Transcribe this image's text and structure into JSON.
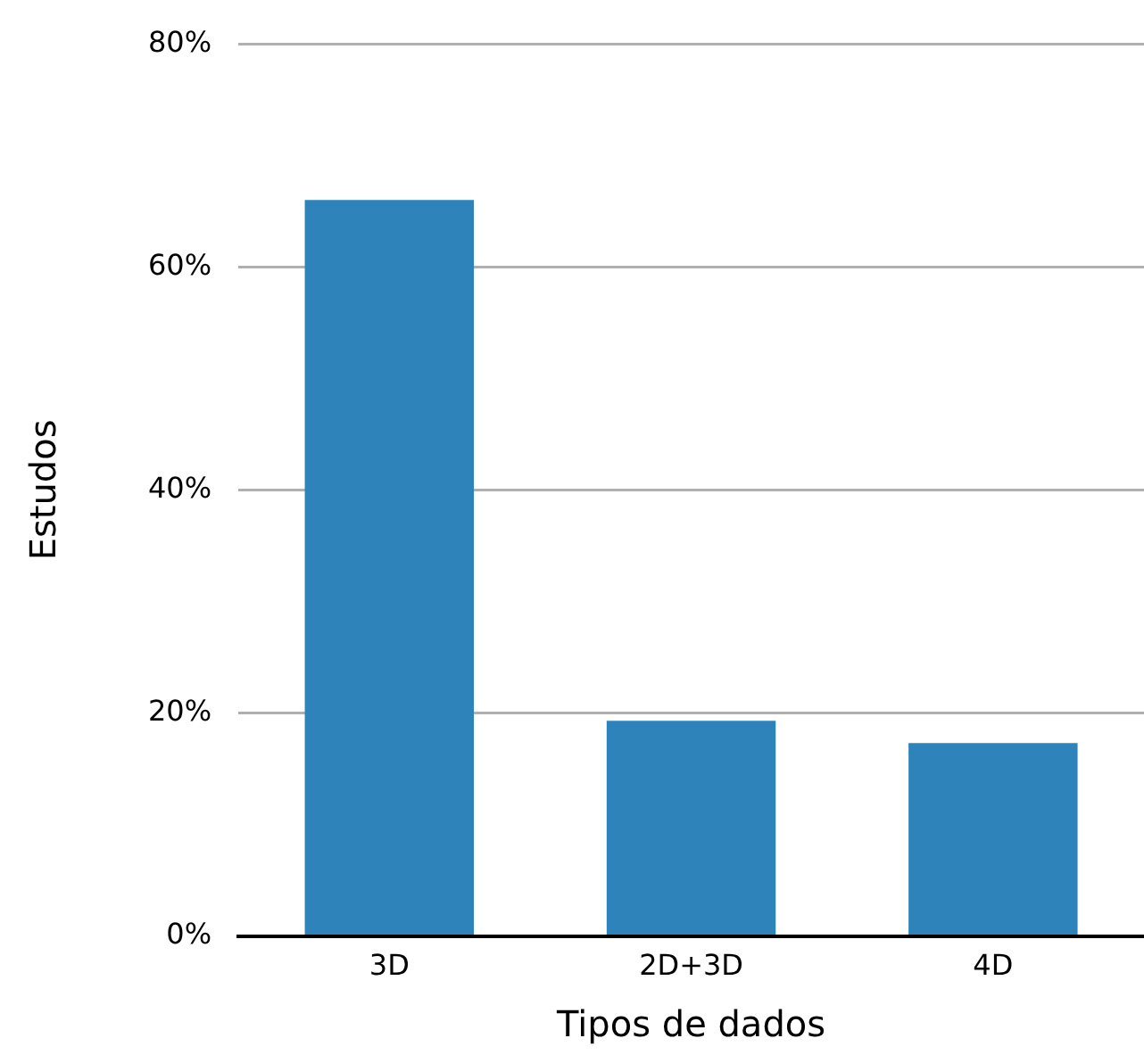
{
  "chart_data": {
    "type": "bar",
    "xlabel": "Tipos de dados",
    "ylabel": "Estudos",
    "categories": [
      "3D",
      "2D+3D",
      "4D"
    ],
    "series": [
      {
        "color": "#2e83ba",
        "values": [
          66,
          19.3,
          17.3
        ]
      }
    ],
    "ylim": [
      0,
      80
    ],
    "yticks": [
      {
        "value": 0,
        "label": "0%"
      },
      {
        "value": 20,
        "label": "20%"
      },
      {
        "value": 40,
        "label": "40%"
      },
      {
        "value": 60,
        "label": "60%"
      },
      {
        "value": 80,
        "label": "80%"
      }
    ],
    "grid": "y",
    "legend": false
  }
}
